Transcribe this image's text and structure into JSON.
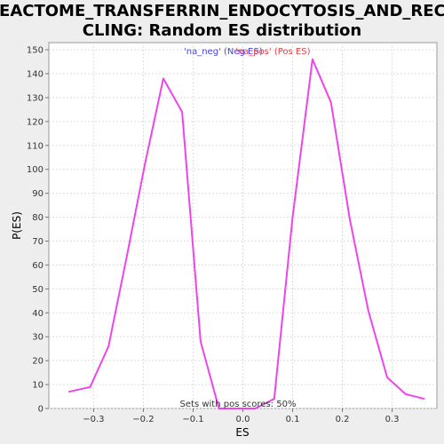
{
  "chart_data": {
    "type": "line",
    "title_lines": [
      "REACTOME_TRANSFERRIN_ENDOCYTOSIS_AND_RECY",
      "CLING: Random ES distribution"
    ],
    "xlabel": "ES",
    "ylabel": "P(ES)",
    "xlim": [
      -0.39,
      0.39
    ],
    "ylim": [
      0,
      153
    ],
    "x_ticks": [
      -0.3,
      -0.2,
      -0.1,
      0.0,
      0.1,
      0.2,
      0.3
    ],
    "x_tick_labels": [
      "−0.3",
      "−0.2",
      "−0.1",
      "0.0",
      "0.1",
      "0.2",
      "0.3"
    ],
    "y_ticks": [
      0,
      10,
      20,
      30,
      40,
      50,
      60,
      70,
      80,
      90,
      100,
      110,
      120,
      130,
      140,
      150
    ],
    "grid": true,
    "legend": [
      {
        "label": "'na_neg' (Neg ES)",
        "color": "#4444dd"
      },
      {
        "label": "'na_pos' (Pos ES)",
        "color": "#dd4444"
      }
    ],
    "annotation": "Sets with pos scores: 50%",
    "series": [
      {
        "color": "#ee44ee",
        "x": [
          -0.35,
          -0.307,
          -0.27,
          -0.233,
          -0.197,
          -0.16,
          -0.122,
          -0.085,
          -0.048,
          -0.01,
          0.025,
          0.063,
          0.1,
          0.14,
          0.177,
          0.215,
          0.252,
          0.29,
          0.327,
          0.365
        ],
        "y": [
          7,
          9,
          26,
          64,
          102,
          138,
          124,
          28,
          0,
          0,
          0,
          4,
          80,
          146,
          128,
          79,
          41,
          13,
          6,
          4
        ]
      }
    ]
  }
}
